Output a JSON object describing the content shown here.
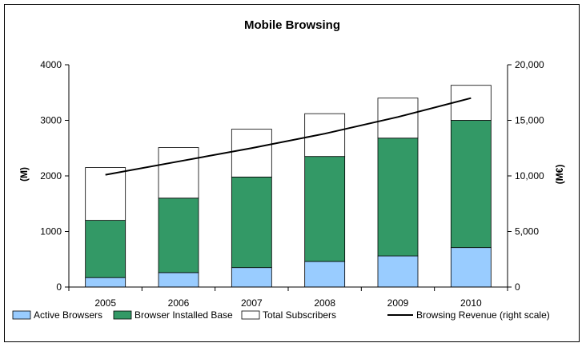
{
  "chart_data": {
    "type": "bar",
    "stacked": true,
    "title": "Mobile Browsing",
    "categories": [
      "2005",
      "2006",
      "2007",
      "2008",
      "2009",
      "2010"
    ],
    "ylabel": "(M)",
    "ylabel_right": "(M€)",
    "ylim": [
      0,
      4000
    ],
    "ylim_right": [
      0,
      20000
    ],
    "yticks": [
      "0",
      "1000",
      "2000",
      "3000",
      "4000"
    ],
    "yticks_right": [
      "0",
      "5,000",
      "10,000",
      "15,000",
      "20,000"
    ],
    "grid": false,
    "legend_position": "bottom",
    "series": [
      {
        "name": "Active Browsers",
        "kind": "bar",
        "axis": "left",
        "color": "#99ccff",
        "values": [
          170,
          260,
          350,
          460,
          560,
          710
        ]
      },
      {
        "name": "Browser Installed Base",
        "kind": "bar",
        "axis": "left",
        "color": "#339966",
        "values": [
          1030,
          1340,
          1630,
          1890,
          2120,
          2290
        ]
      },
      {
        "name": "Total Subscribers",
        "kind": "bar",
        "axis": "left",
        "color": "#ffffff",
        "values": [
          950,
          910,
          860,
          770,
          720,
          630
        ]
      },
      {
        "name": "Browsing Revenue (right scale)",
        "kind": "line",
        "axis": "right",
        "color": "#000000",
        "values": [
          10100,
          11300,
          12500,
          13800,
          15300,
          17000
        ]
      }
    ]
  }
}
